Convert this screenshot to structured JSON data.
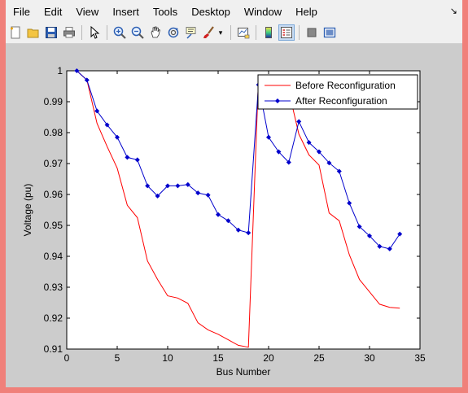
{
  "menu": {
    "items": [
      "File",
      "Edit",
      "View",
      "Insert",
      "Tools",
      "Desktop",
      "Window",
      "Help"
    ]
  },
  "toolbar": {
    "icons": [
      "new-file-icon",
      "open-folder-icon",
      "save-icon",
      "print-icon",
      "pointer-icon",
      "zoom-in-icon",
      "zoom-out-icon",
      "pan-icon",
      "rotate-3d-icon",
      "data-cursor-icon",
      "brush-icon",
      "link-plot-icon",
      "colorbar-icon",
      "legend-icon",
      "hide-plot-tools-icon",
      "show-plot-tools-icon"
    ]
  },
  "chart_data": {
    "type": "line",
    "title": "",
    "xlabel": "Bus Number",
    "ylabel": "Voltage (pu)",
    "xlim": [
      0,
      35
    ],
    "ylim": [
      0.91,
      1.0
    ],
    "xticks": [
      0,
      5,
      10,
      15,
      20,
      25,
      30,
      35
    ],
    "yticks": [
      0.91,
      0.92,
      0.93,
      0.94,
      0.95,
      0.96,
      0.97,
      0.98,
      0.99,
      1.0
    ],
    "ytick_labels": [
      "0.91",
      "0.92",
      "0.93",
      "0.94",
      "0.95",
      "0.96",
      "0.97",
      "0.98",
      "0.99",
      "1"
    ],
    "grid": false,
    "legend_position": "top-right",
    "x": [
      1,
      2,
      3,
      4,
      5,
      6,
      7,
      8,
      9,
      10,
      11,
      12,
      13,
      14,
      15,
      16,
      17,
      18,
      19,
      20,
      21,
      22,
      23,
      24,
      25,
      26,
      27,
      28,
      29,
      30,
      31,
      32,
      33
    ],
    "series": [
      {
        "name": "Before Reconfiguration",
        "color": "#ff0000",
        "marker": "none",
        "values": [
          1.0,
          0.997,
          0.983,
          0.9755,
          0.9685,
          0.9565,
          0.9525,
          0.9385,
          0.9325,
          0.9272,
          0.9265,
          0.9248,
          0.9185,
          0.9162,
          0.9148,
          0.913,
          0.9112,
          0.9106,
          0.9975,
          0.9962,
          0.9955,
          0.9935,
          0.9795,
          0.9728,
          0.9695,
          0.954,
          0.9515,
          0.9405,
          0.9325,
          0.9285,
          0.9245,
          0.9235,
          0.9232
        ]
      },
      {
        "name": "After Reconfiguration",
        "color": "#0000cc",
        "marker": "diamond",
        "values": [
          1.0,
          0.997,
          0.987,
          0.9825,
          0.9785,
          0.972,
          0.9712,
          0.9628,
          0.9595,
          0.9628,
          0.9628,
          0.9632,
          0.9605,
          0.9598,
          0.9535,
          0.9515,
          0.9485,
          0.9476,
          0.9955,
          0.9785,
          0.9738,
          0.9704,
          0.9836,
          0.9768,
          0.9738,
          0.9702,
          0.9675,
          0.9572,
          0.9496,
          0.9466,
          0.9432,
          0.9424,
          0.9472
        ]
      }
    ]
  }
}
